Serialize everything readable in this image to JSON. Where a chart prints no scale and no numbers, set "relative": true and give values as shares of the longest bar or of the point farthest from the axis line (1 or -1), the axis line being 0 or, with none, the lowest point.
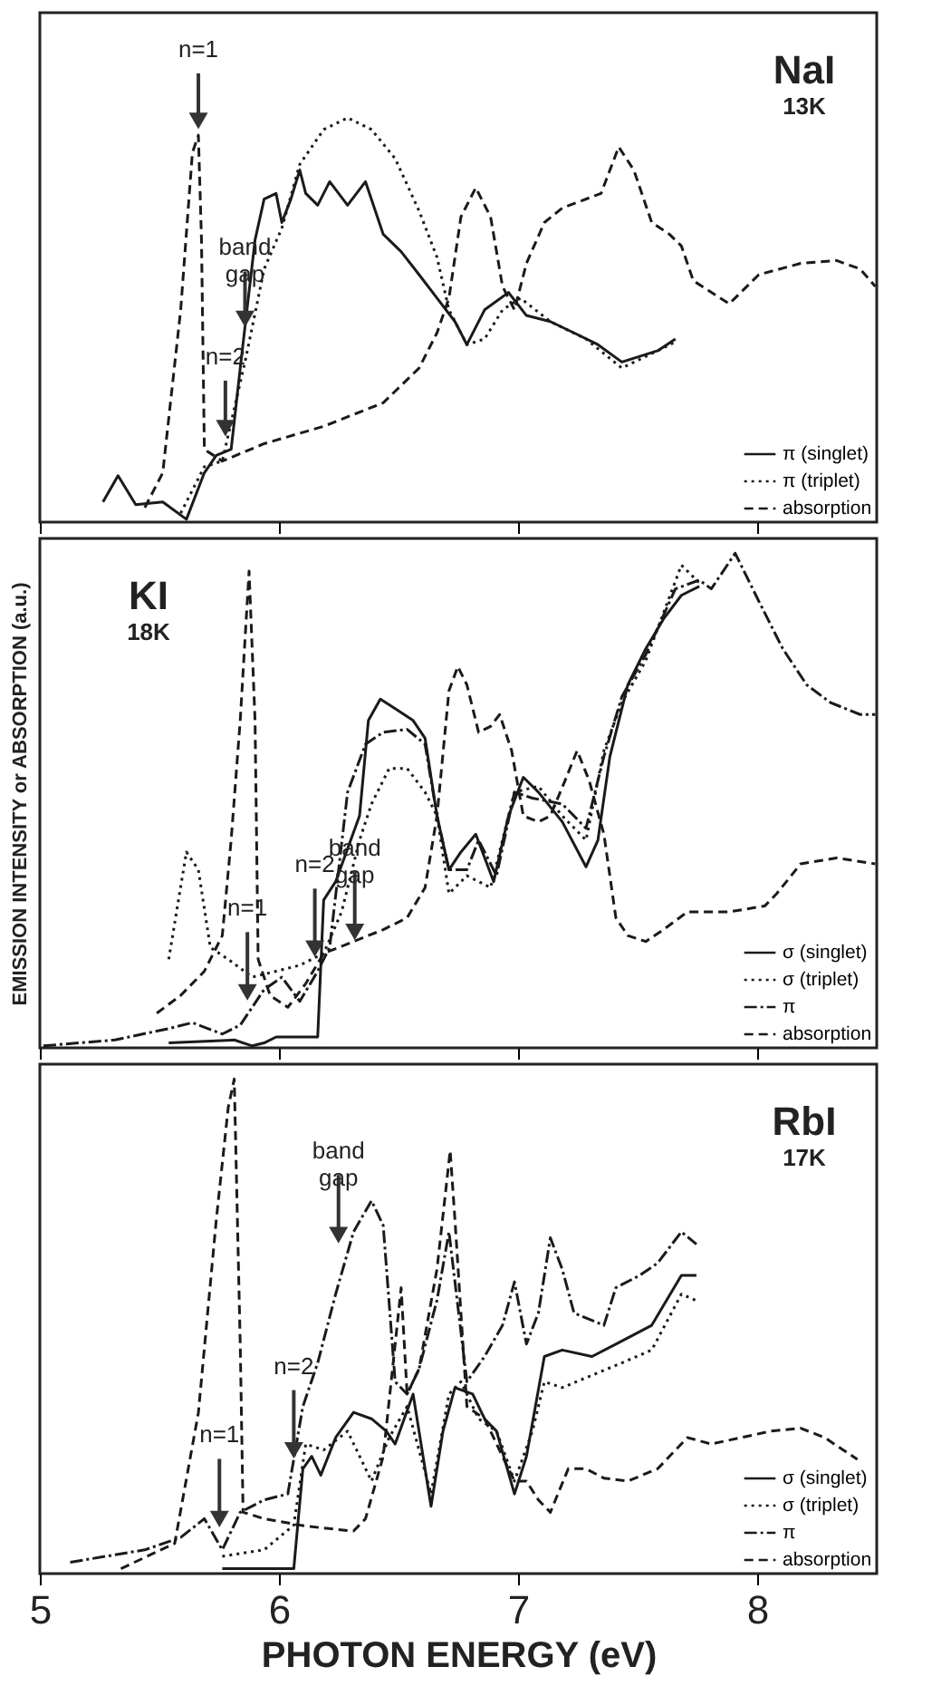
{
  "chart_data": [
    {
      "type": "line",
      "relative": true,
      "title": "NaI",
      "subtitle": "13K",
      "xlim": [
        5,
        8.5
      ],
      "xticks": [
        5,
        6,
        7,
        8
      ],
      "tick_labels": false,
      "grid": false,
      "legend": "bottom right",
      "annotations": [
        {
          "text": "n=1",
          "x": 5.663,
          "y": 0.97
        },
        {
          "text": "band gap",
          "x": 5.858,
          "y": 0.48
        },
        {
          "text": "n=2",
          "x": 5.776,
          "y": 0.21
        }
      ],
      "series": [
        {
          "name": "π (singlet)",
          "color": "#1a1a1a",
          "line_style": "solid",
          "x": [
            5.264,
            5.327,
            5.401,
            5.514,
            5.613,
            5.688,
            5.738,
            5.8,
            5.838,
            5.9,
            5.938,
            5.988,
            6.012,
            6.05,
            6.087,
            6.112,
            6.162,
            6.212,
            6.287,
            6.362,
            6.436,
            6.511,
            6.586,
            6.661,
            6.736,
            6.786,
            6.86,
            6.96,
            7.035,
            7.135,
            7.234,
            7.334,
            7.434,
            7.509,
            7.584,
            7.658
          ],
          "values": [
            0.05,
            0.115,
            0.043,
            0.05,
            0.007,
            0.122,
            0.165,
            0.18,
            0.381,
            0.698,
            0.799,
            0.813,
            0.741,
            0.799,
            0.871,
            0.813,
            0.784,
            0.842,
            0.784,
            0.842,
            0.712,
            0.669,
            0.612,
            0.554,
            0.496,
            0.439,
            0.525,
            0.568,
            0.511,
            0.496,
            0.468,
            0.439,
            0.396,
            0.41,
            0.424,
            0.453
          ]
        },
        {
          "name": "π (triplet)",
          "color": "#1a1a1a",
          "line_style": "dotted",
          "x": [
            5.589,
            5.688,
            5.763,
            5.863,
            5.938,
            6.012,
            6.087,
            6.187,
            6.287,
            6.387,
            6.486,
            6.586,
            6.661,
            6.711,
            6.786,
            6.86,
            6.935,
            7.01,
            7.135,
            7.284,
            7.434,
            7.584,
            7.658
          ],
          "values": [
            0.022,
            0.137,
            0.151,
            0.41,
            0.626,
            0.727,
            0.885,
            0.971,
            1.0,
            0.971,
            0.899,
            0.77,
            0.655,
            0.525,
            0.439,
            0.453,
            0.525,
            0.554,
            0.496,
            0.453,
            0.381,
            0.424,
            0.446
          ]
        },
        {
          "name": "absorption",
          "color": "#1a1a1a",
          "line_style": "dashed",
          "x": [
            5.439,
            5.514,
            5.589,
            5.638,
            5.663,
            5.676,
            5.688,
            5.763,
            5.938,
            6.187,
            6.436,
            6.586,
            6.661,
            6.711,
            6.761,
            6.823,
            6.885,
            6.935,
            6.985,
            7.035,
            7.11,
            7.185,
            7.347,
            7.421,
            7.484,
            7.559,
            7.633,
            7.683,
            7.733,
            7.883,
            8.007,
            8.182,
            8.332,
            8.431,
            8.494
          ],
          "values": [
            0.036,
            0.122,
            0.525,
            0.914,
            0.957,
            0.698,
            0.18,
            0.151,
            0.194,
            0.237,
            0.295,
            0.381,
            0.468,
            0.554,
            0.755,
            0.827,
            0.755,
            0.583,
            0.525,
            0.64,
            0.741,
            0.777,
            0.813,
            0.928,
            0.871,
            0.741,
            0.712,
            0.683,
            0.597,
            0.54,
            0.612,
            0.64,
            0.647,
            0.626,
            0.583
          ]
        }
      ]
    },
    {
      "type": "line",
      "relative": true,
      "title": "KI",
      "subtitle": "18K",
      "ylabel": "EMISSION INTENSITY or ABSORPTION (a.u.)",
      "xlim": [
        5,
        8.5
      ],
      "xticks": [
        5,
        6,
        7,
        8
      ],
      "tick_labels": false,
      "grid": false,
      "legend": "bottom right",
      "annotations": [
        {
          "text": "n=2",
          "x": 6.15,
          "y": 0.182
        },
        {
          "text": "n=1",
          "x": 5.868,
          "y": 0.094
        },
        {
          "text": "band gap",
          "x": 6.317,
          "y": 0.216
        }
      ],
      "series": [
        {
          "name": "σ (singlet)",
          "color": "#1a1a1a",
          "line_style": "solid",
          "x": [
            5.539,
            5.813,
            5.888,
            5.938,
            5.988,
            6.162,
            6.187,
            6.237,
            6.337,
            6.374,
            6.424,
            6.486,
            6.561,
            6.611,
            6.661,
            6.711,
            6.761,
            6.823,
            6.898,
            6.96,
            7.022,
            7.085,
            7.185,
            7.284,
            7.334,
            7.384,
            7.459,
            7.534,
            7.608,
            7.683,
            7.758
          ],
          "values": [
            0.01,
            0.016,
            0.004,
            0.01,
            0.022,
            0.022,
            0.299,
            0.336,
            0.469,
            0.662,
            0.705,
            0.686,
            0.662,
            0.626,
            0.469,
            0.36,
            0.396,
            0.432,
            0.336,
            0.469,
            0.547,
            0.517,
            0.457,
            0.366,
            0.42,
            0.589,
            0.734,
            0.807,
            0.867,
            0.915,
            0.933
          ]
        },
        {
          "name": "σ (triplet)",
          "color": "#1a1a1a",
          "line_style": "dotted",
          "x": [
            5.539,
            5.613,
            5.663,
            5.713,
            5.788,
            5.888,
            5.988,
            6.087,
            6.187,
            6.262,
            6.337,
            6.387,
            6.461,
            6.536,
            6.611,
            6.661,
            6.711,
            6.786,
            6.885,
            6.985,
            7.085,
            7.185,
            7.284,
            7.359,
            7.434,
            7.534,
            7.608,
            7.683,
            7.758
          ],
          "values": [
            0.179,
            0.396,
            0.36,
            0.203,
            0.179,
            0.143,
            0.155,
            0.167,
            0.191,
            0.275,
            0.42,
            0.493,
            0.565,
            0.565,
            0.517,
            0.469,
            0.312,
            0.348,
            0.324,
            0.517,
            0.529,
            0.469,
            0.42,
            0.601,
            0.698,
            0.783,
            0.879,
            0.976,
            0.94
          ]
        },
        {
          "name": "π",
          "color": "#1a1a1a",
          "line_style": "dashdot",
          "x": [
            5.015,
            5.314,
            5.539,
            5.638,
            5.763,
            5.838,
            5.938,
            6.012,
            6.087,
            6.162,
            6.212,
            6.287,
            6.362,
            6.436,
            6.536,
            6.611,
            6.661,
            6.711,
            6.786,
            6.835,
            6.91,
            6.985,
            7.06,
            7.185,
            7.284,
            7.359,
            7.434,
            7.534,
            7.658,
            7.758,
            7.808,
            7.908,
            8.007,
            8.107,
            8.207,
            8.307,
            8.431,
            8.494
          ],
          "values": [
            0.004,
            0.016,
            0.039,
            0.051,
            0.028,
            0.046,
            0.118,
            0.143,
            0.094,
            0.155,
            0.203,
            0.517,
            0.614,
            0.638,
            0.644,
            0.614,
            0.469,
            0.36,
            0.36,
            0.42,
            0.348,
            0.517,
            0.505,
            0.493,
            0.444,
            0.589,
            0.71,
            0.795,
            0.928,
            0.946,
            0.928,
            1.0,
            0.903,
            0.807,
            0.734,
            0.698,
            0.674,
            0.674
          ]
        },
        {
          "name": "absorption",
          "color": "#1a1a1a",
          "line_style": "dashed",
          "x": [
            5.489,
            5.589,
            5.688,
            5.763,
            5.8,
            5.838,
            5.875,
            5.9,
            5.913,
            5.963,
            6.037,
            6.112,
            6.187,
            6.312,
            6.436,
            6.536,
            6.611,
            6.661,
            6.711,
            6.748,
            6.786,
            6.835,
            6.885,
            6.923,
            6.973,
            7.022,
            7.085,
            7.135,
            7.197,
            7.247,
            7.297,
            7.359,
            7.409,
            7.459,
            7.534,
            7.608,
            7.708,
            7.883,
            8.032,
            8.082,
            8.182,
            8.332,
            8.494
          ],
          "values": [
            0.07,
            0.106,
            0.155,
            0.227,
            0.42,
            0.662,
            0.964,
            0.662,
            0.179,
            0.106,
            0.082,
            0.13,
            0.191,
            0.215,
            0.239,
            0.263,
            0.324,
            0.469,
            0.722,
            0.771,
            0.734,
            0.638,
            0.65,
            0.674,
            0.601,
            0.469,
            0.457,
            0.469,
            0.541,
            0.601,
            0.541,
            0.432,
            0.263,
            0.227,
            0.215,
            0.239,
            0.275,
            0.275,
            0.287,
            0.312,
            0.372,
            0.384,
            0.372
          ]
        }
      ]
    },
    {
      "type": "line",
      "relative": true,
      "title": "RbI",
      "subtitle": "17K",
      "xlabel": "PHOTON ENERGY (eV)",
      "xlim": [
        5,
        8.5
      ],
      "xticks": [
        5,
        6,
        7,
        8
      ],
      "tick_labels": "x",
      "grid": false,
      "legend": "bottom right",
      "annotations": [
        {
          "text": "band gap",
          "x": 6.249,
          "y": 0.666
        },
        {
          "text": "n=2",
          "x": 6.062,
          "y": 0.231
        },
        {
          "text": "n=1",
          "x": 5.751,
          "y": 0.092
        }
      ],
      "series": [
        {
          "name": "σ (singlet)",
          "color": "#1a1a1a",
          "line_style": "solid",
          "x": [
            5.763,
            6.062,
            6.1,
            6.137,
            6.175,
            6.237,
            6.312,
            6.387,
            6.449,
            6.486,
            6.561,
            6.636,
            6.686,
            6.736,
            6.81,
            6.86,
            6.91,
            6.985,
            7.035,
            7.11,
            7.185,
            7.309,
            7.409,
            7.559,
            7.683,
            7.746
          ],
          "values": [
            0.01,
            0.01,
            0.212,
            0.237,
            0.199,
            0.275,
            0.326,
            0.313,
            0.288,
            0.262,
            0.363,
            0.136,
            0.288,
            0.376,
            0.363,
            0.313,
            0.288,
            0.161,
            0.237,
            0.439,
            0.452,
            0.439,
            0.464,
            0.502,
            0.603,
            0.603
          ]
        },
        {
          "name": "σ (triplet)",
          "color": "#1a1a1a",
          "line_style": "dotted",
          "x": [
            5.763,
            5.938,
            6.062,
            6.112,
            6.187,
            6.287,
            6.387,
            6.461,
            6.536,
            6.636,
            6.711,
            6.761,
            6.835,
            6.91,
            6.985,
            7.06,
            7.11,
            7.185,
            7.309,
            7.434,
            7.559,
            7.683,
            7.746
          ],
          "values": [
            0.035,
            0.048,
            0.098,
            0.262,
            0.25,
            0.288,
            0.187,
            0.275,
            0.338,
            0.161,
            0.363,
            0.388,
            0.313,
            0.288,
            0.187,
            0.288,
            0.388,
            0.376,
            0.401,
            0.426,
            0.452,
            0.565,
            0.552
          ]
        },
        {
          "name": "π",
          "color": "#1a1a1a",
          "line_style": "dashdot",
          "x": [
            5.127,
            5.439,
            5.589,
            5.688,
            5.763,
            5.838,
            5.938,
            6.037,
            6.1,
            6.162,
            6.237,
            6.312,
            6.387,
            6.436,
            6.486,
            6.536,
            6.586,
            6.661,
            6.711,
            6.786,
            6.86,
            6.935,
            6.985,
            7.035,
            7.085,
            7.135,
            7.185,
            7.234,
            7.359,
            7.409,
            7.509,
            7.584,
            7.683,
            7.746
          ],
          "values": [
            0.023,
            0.048,
            0.073,
            0.111,
            0.048,
            0.124,
            0.149,
            0.161,
            0.338,
            0.426,
            0.565,
            0.691,
            0.754,
            0.704,
            0.388,
            0.363,
            0.414,
            0.553,
            0.691,
            0.388,
            0.439,
            0.502,
            0.59,
            0.464,
            0.527,
            0.679,
            0.615,
            0.527,
            0.502,
            0.578,
            0.603,
            0.628,
            0.691,
            0.666
          ]
        },
        {
          "name": "absorption",
          "color": "#1a1a1a",
          "line_style": "dashed",
          "x": [
            5.339,
            5.564,
            5.663,
            5.738,
            5.788,
            5.813,
            5.838,
            5.85,
            5.938,
            6.087,
            6.187,
            6.312,
            6.362,
            6.436,
            6.486,
            6.511,
            6.536,
            6.586,
            6.661,
            6.716,
            6.736,
            6.786,
            6.86,
            6.935,
            6.985,
            7.035,
            7.085,
            7.135,
            7.21,
            7.284,
            7.359,
            7.459,
            7.584,
            7.708,
            7.808,
            7.933,
            8.057,
            8.182,
            8.282,
            8.419
          ],
          "values": [
            0.01,
            0.061,
            0.325,
            0.716,
            0.943,
            1.0,
            0.464,
            0.124,
            0.111,
            0.098,
            0.092,
            0.086,
            0.111,
            0.237,
            0.464,
            0.578,
            0.363,
            0.414,
            0.616,
            0.855,
            0.716,
            0.338,
            0.313,
            0.237,
            0.187,
            0.187,
            0.149,
            0.124,
            0.212,
            0.212,
            0.193,
            0.187,
            0.212,
            0.275,
            0.262,
            0.275,
            0.288,
            0.294,
            0.275,
            0.231
          ]
        }
      ]
    }
  ]
}
